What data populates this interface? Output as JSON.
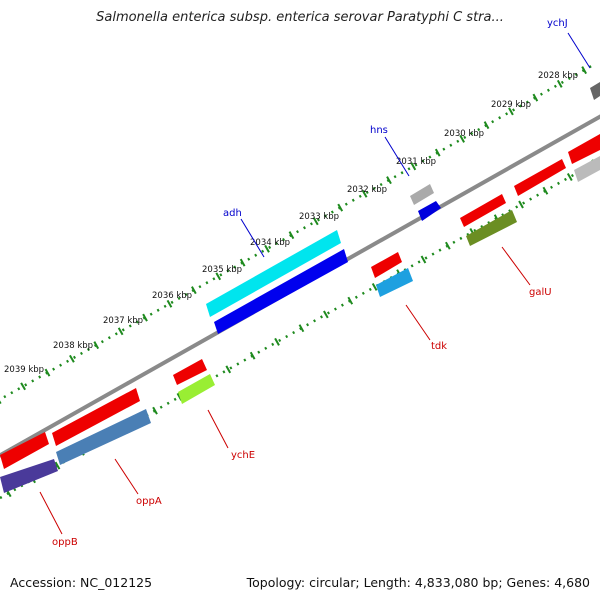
{
  "title": "Salmonella enterica subsp. enterica serovar Paratyphi C stra...",
  "footer": {
    "accession": "Accession: NC_012125",
    "summary": "Topology: circular; Length: 4,833,080 bp; Genes: 4,680"
  },
  "ticks": [
    "2028 kbp",
    "2029 kbp",
    "2030 kbp",
    "2031 kbp",
    "2032 kbp",
    "2033 kbp",
    "2034 kbp",
    "2035 kbp",
    "2036 kbp",
    "2037 kbp",
    "2038 kbp",
    "2039 kbp"
  ],
  "genes": [
    {
      "name": "ychJ",
      "color": "#0000cc"
    },
    {
      "name": "hns",
      "color": "#0000cc"
    },
    {
      "name": "adh",
      "color": "#0000cc"
    },
    {
      "name": "galU",
      "color": "#cc0000"
    },
    {
      "name": "tdk",
      "color": "#cc0000"
    },
    {
      "name": "ychE",
      "color": "#cc0000"
    },
    {
      "name": "oppA",
      "color": "#cc0000"
    },
    {
      "name": "oppB",
      "color": "#cc0000"
    }
  ]
}
